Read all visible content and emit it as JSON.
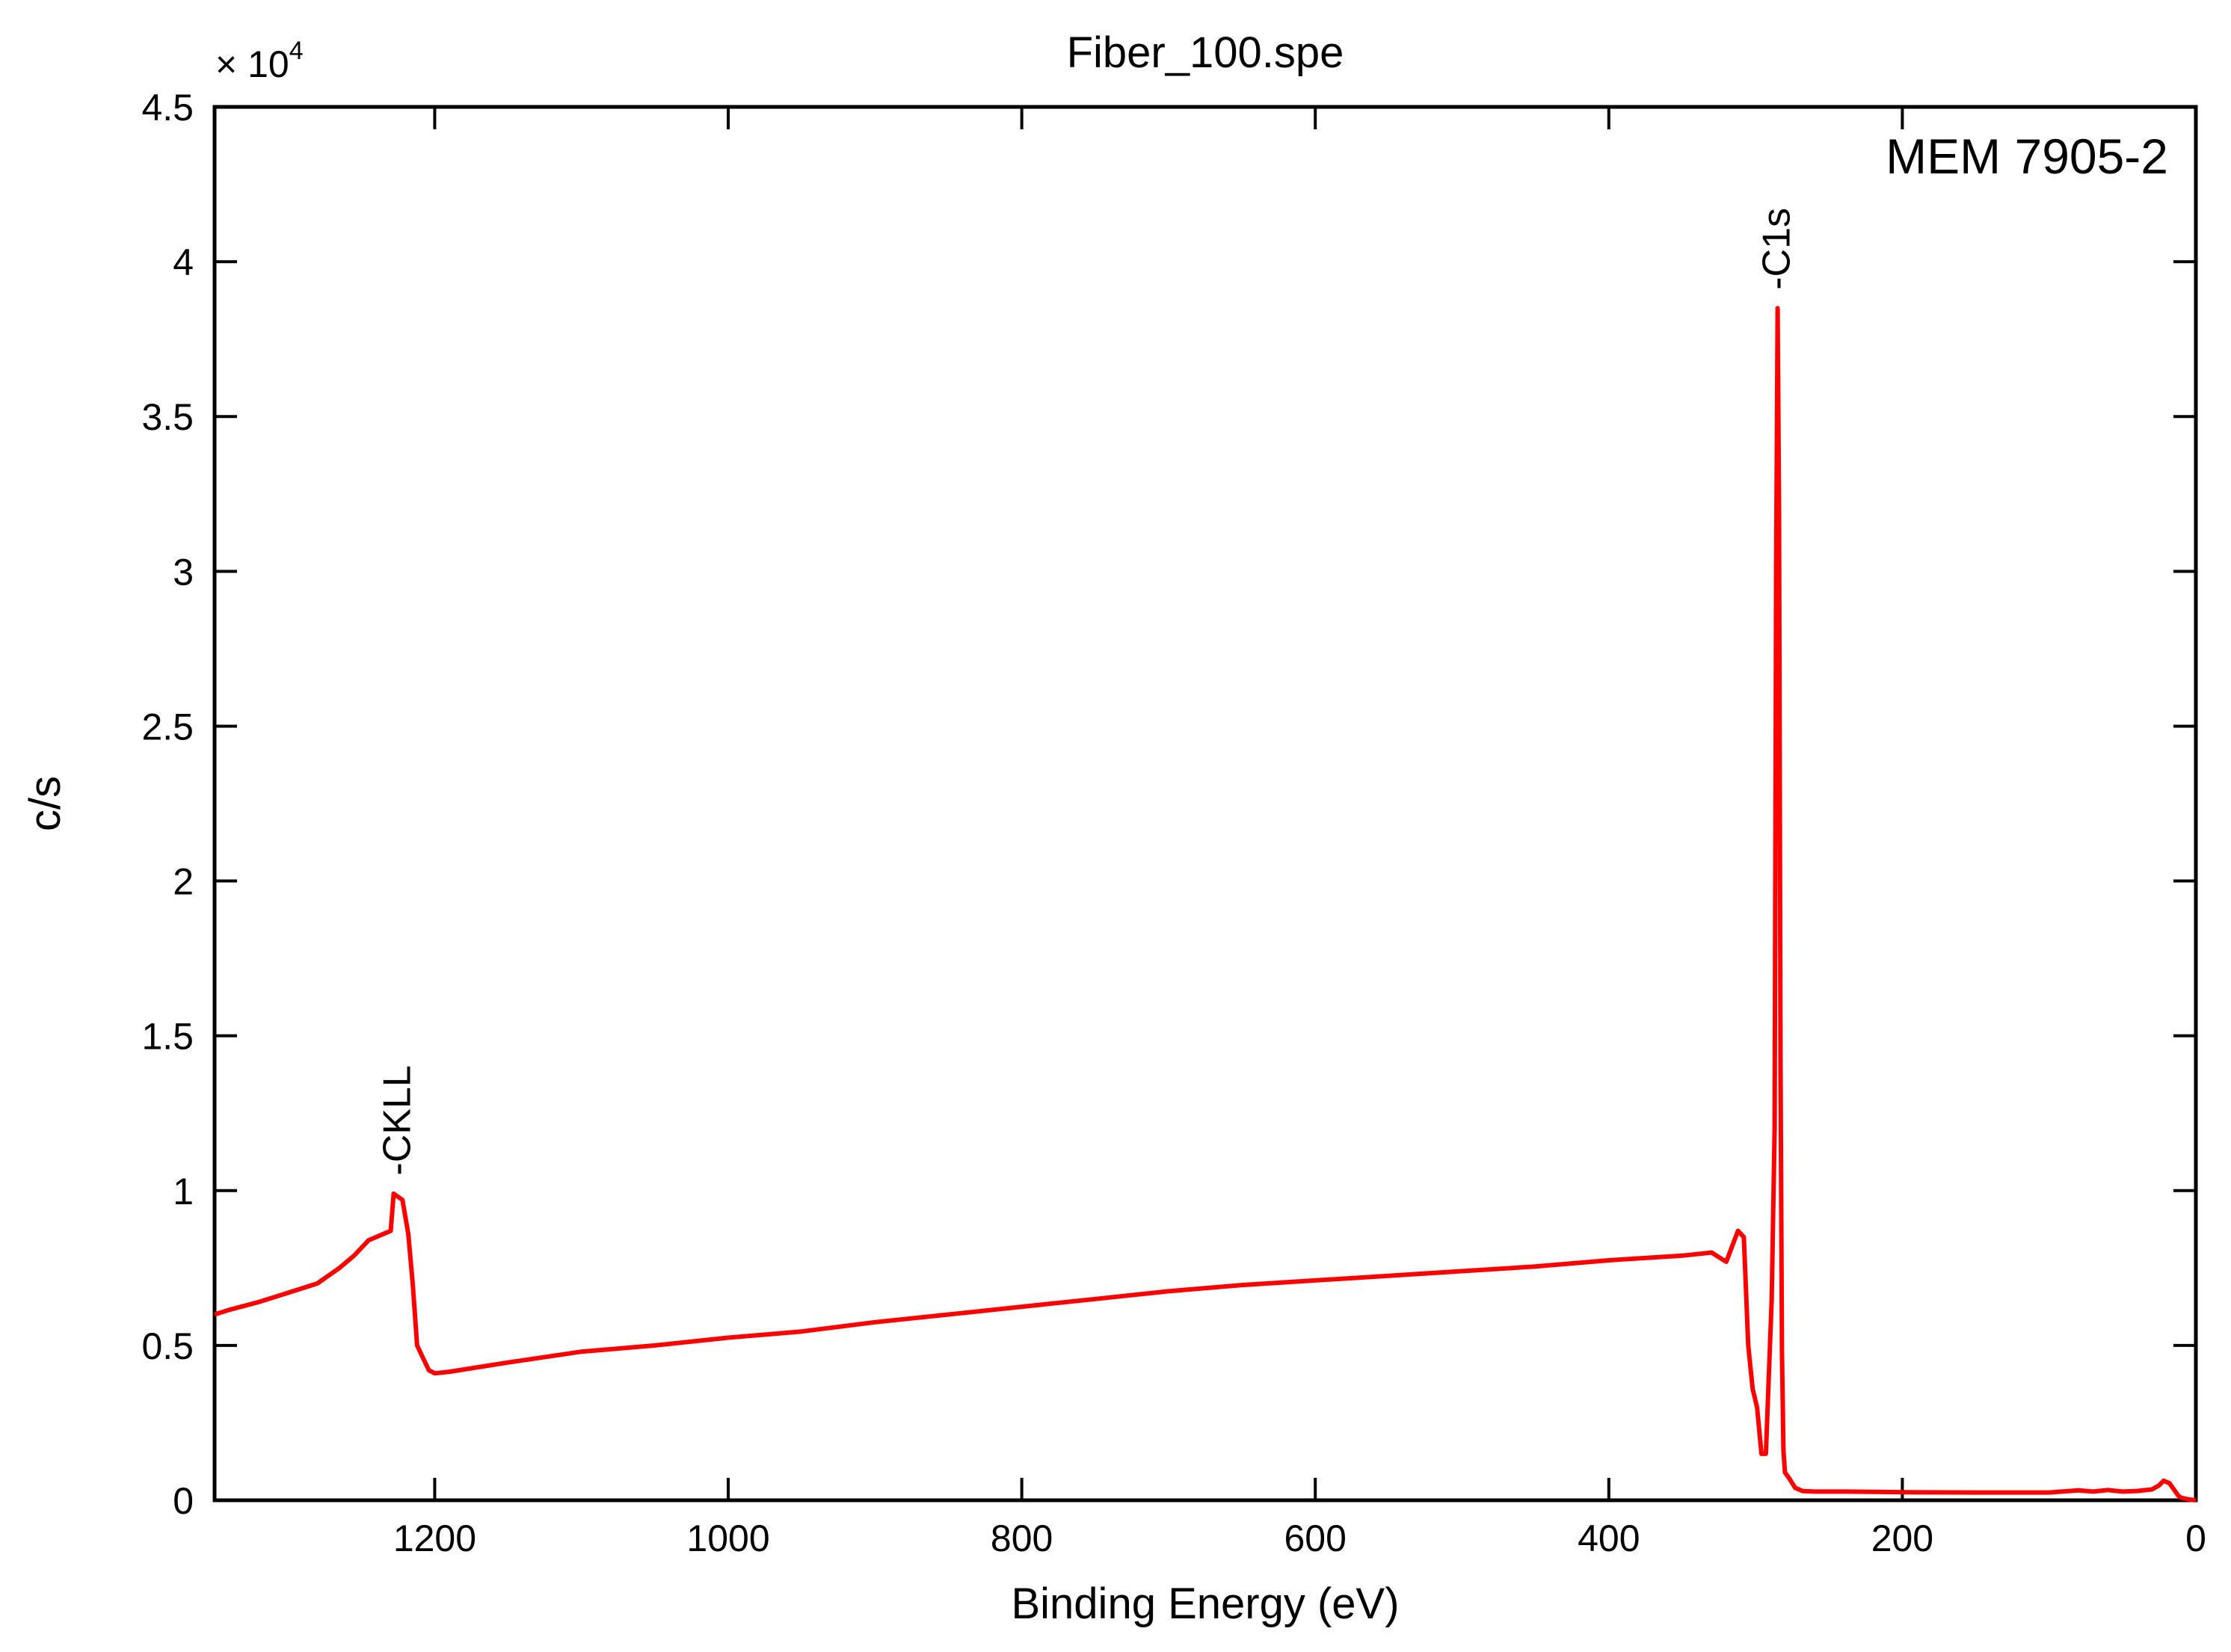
{
  "chart_data": {
    "type": "line",
    "title": "Fiber_100.spe",
    "xlabel": "Binding Energy (eV)",
    "ylabel": "c/s",
    "xlim": [
      1350,
      0
    ],
    "ylim": [
      0,
      45000
    ],
    "x_reversed": true,
    "grid": false,
    "x_ticks": [
      1200,
      1000,
      800,
      600,
      400,
      200,
      0
    ],
    "y_ticks": [
      0,
      5000,
      10000,
      15000,
      20000,
      25000,
      30000,
      35000,
      40000,
      45000
    ],
    "y_tick_labels": [
      "0",
      "0.5",
      "1",
      "1.5",
      "2",
      "2.5",
      "3",
      "3.5",
      "4",
      "4.5"
    ],
    "y_multiplier": {
      "base": "× 10",
      "exponent": "4"
    },
    "annotations": [
      {
        "text": "-CKLL",
        "x": 1225,
        "y": 10200
      },
      {
        "text": "-C1s",
        "x": 285,
        "y": 38800
      }
    ],
    "series": [
      {
        "name": "MEM 7905-2",
        "color": "#ff0000",
        "x": [
          1350,
          1340,
          1320,
          1300,
          1280,
          1265,
          1255,
          1245,
          1235,
          1230,
          1228,
          1225,
          1222,
          1218,
          1215,
          1212,
          1208,
          1204,
          1200,
          1190,
          1170,
          1150,
          1100,
          1050,
          1000,
          950,
          900,
          850,
          800,
          750,
          700,
          650,
          600,
          550,
          500,
          450,
          400,
          350,
          330,
          320,
          312,
          308,
          305,
          302,
          299,
          296,
          293,
          291,
          289,
          287,
          286,
          285,
          284,
          283,
          282,
          281,
          280,
          277,
          273,
          268,
          260,
          240,
          200,
          150,
          100,
          80,
          70,
          60,
          50,
          40,
          30,
          25,
          22,
          18,
          15,
          12,
          10,
          5,
          0
        ],
        "y": [
          6000,
          6150,
          6400,
          6700,
          7000,
          7500,
          7900,
          8400,
          8600,
          8700,
          9900,
          9800,
          9700,
          8600,
          7000,
          5000,
          4600,
          4200,
          4100,
          4150,
          4300,
          4450,
          4800,
          5000,
          5250,
          5450,
          5750,
          6000,
          6250,
          6500,
          6750,
          6950,
          7100,
          7250,
          7400,
          7550,
          7750,
          7900,
          8000,
          7700,
          8700,
          8500,
          5000,
          3600,
          3000,
          1500,
          1500,
          4000,
          6500,
          12000,
          30000,
          38500,
          32000,
          14000,
          4800,
          1600,
          900,
          700,
          400,
          300,
          280,
          280,
          260,
          250,
          250,
          320,
          280,
          330,
          280,
          300,
          350,
          480,
          630,
          550,
          350,
          150,
          80,
          30,
          0
        ]
      }
    ]
  }
}
